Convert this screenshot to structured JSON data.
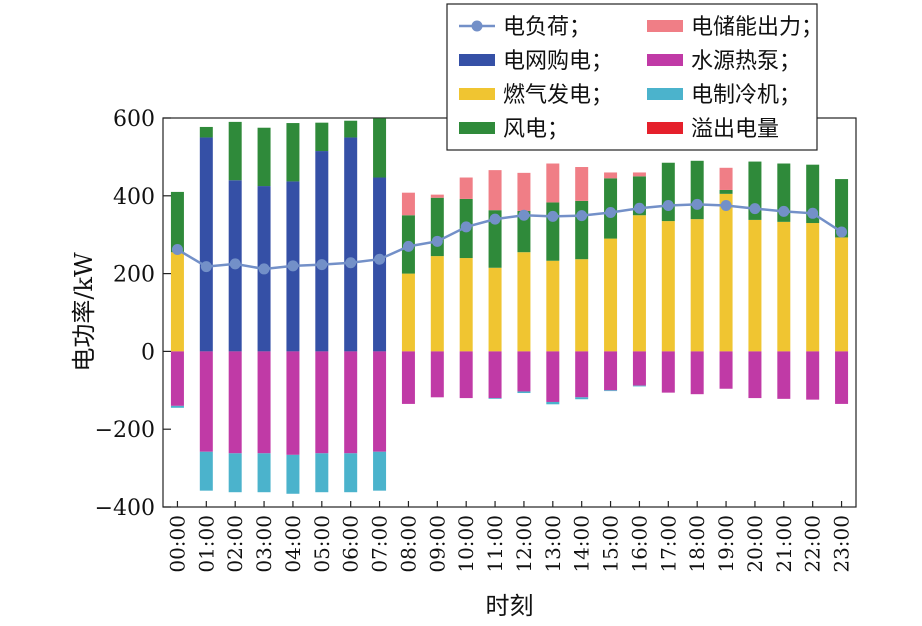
{
  "chart_data": {
    "type": "bar",
    "stacked": true,
    "xlabel": "时刻",
    "ylabel": "电功率/kW",
    "ylim": [
      -400,
      600
    ],
    "yticks": [
      -400,
      -200,
      0,
      200,
      400,
      600
    ],
    "grid": false,
    "legend_position": "top-right",
    "categories": [
      "00:00",
      "01:00",
      "02:00",
      "03:00",
      "04:00",
      "05:00",
      "06:00",
      "07:00",
      "08:00",
      "09:00",
      "10:00",
      "11:00",
      "12:00",
      "13:00",
      "14:00",
      "15:00",
      "16:00",
      "17:00",
      "18:00",
      "19:00",
      "20:00",
      "21:00",
      "22:00",
      "23:00"
    ],
    "line_series": {
      "name": "电负荷；",
      "color": "#7390c8",
      "values": [
        262,
        218,
        225,
        212,
        220,
        223,
        228,
        237,
        270,
        283,
        320,
        340,
        350,
        347,
        349,
        357,
        368,
        375,
        378,
        375,
        367,
        360,
        355,
        307
      ]
    },
    "series": [
      {
        "name": "电网购电；",
        "color": "#3550a6",
        "values": [
          0,
          550,
          440,
          425,
          437,
          515,
          550,
          447,
          0,
          0,
          0,
          0,
          0,
          0,
          0,
          0,
          0,
          0,
          0,
          0,
          0,
          0,
          0,
          0
        ]
      },
      {
        "name": "燃气发电；",
        "color": "#f0c531",
        "values": [
          255,
          0,
          0,
          0,
          0,
          0,
          0,
          0,
          200,
          245,
          240,
          215,
          255,
          233,
          237,
          290,
          350,
          335,
          340,
          405,
          338,
          333,
          330,
          293
        ]
      },
      {
        "name": "风电；",
        "color": "#2f8a3a",
        "values": [
          155,
          27,
          150,
          150,
          150,
          73,
          43,
          152,
          150,
          150,
          152,
          148,
          106,
          150,
          150,
          155,
          100,
          150,
          150,
          10,
          150,
          150,
          150,
          150
        ]
      },
      {
        "name": "电储能出力；",
        "color": "#f07e86",
        "values": [
          0,
          0,
          0,
          0,
          0,
          0,
          0,
          0,
          58,
          8,
          55,
          103,
          98,
          100,
          87,
          15,
          10,
          0,
          0,
          57,
          0,
          0,
          0,
          0
        ]
      },
      {
        "name": "溢出电量",
        "color": "#e5202b",
        "values": [
          0,
          0,
          0,
          0,
          0,
          0,
          0,
          0,
          0,
          0,
          0,
          0,
          0,
          0,
          0,
          0,
          0,
          0,
          0,
          0,
          0,
          0,
          0,
          0
        ]
      },
      {
        "name": "水源热泵；",
        "color": "#c03aa6",
        "values": [
          -140,
          -258,
          -262,
          -262,
          -266,
          -262,
          -262,
          -258,
          -135,
          -118,
          -120,
          -120,
          -103,
          -130,
          -118,
          -100,
          -88,
          -106,
          -110,
          -96,
          -120,
          -122,
          -124,
          -135
        ]
      },
      {
        "name": "电制冷机；",
        "color": "#4bb3cc",
        "values": [
          -5,
          -100,
          -100,
          -100,
          -100,
          -100,
          -100,
          -100,
          0,
          0,
          0,
          -2,
          -4,
          -6,
          -5,
          -2,
          -2,
          0,
          0,
          0,
          0,
          0,
          0,
          0
        ]
      }
    ],
    "legend_order": [
      "电负荷；",
      "电储能出力；",
      "电网购电；",
      "水源热泵；",
      "燃气发电；",
      "电制冷机；",
      "风电；",
      "溢出电量"
    ]
  }
}
